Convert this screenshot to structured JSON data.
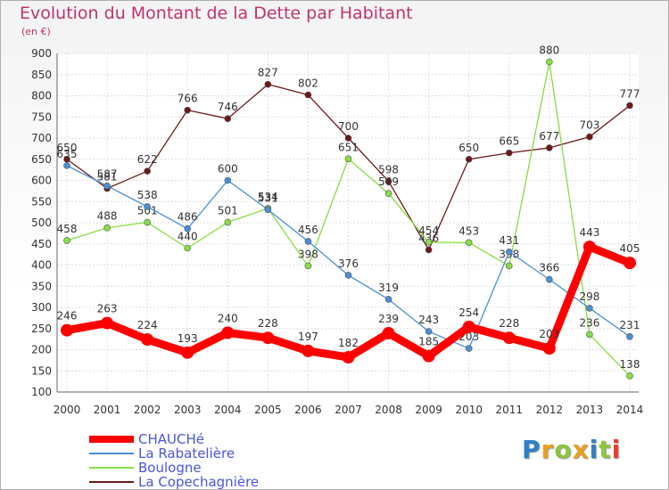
{
  "title": "Evolution du Montant de la Dette par Habitant",
  "subtitle": "(en €)",
  "brand": "Proxiti",
  "chart_data": {
    "type": "line",
    "title": "Evolution du Montant de la Dette par Habitant",
    "ylabel": "(en €)",
    "xlabel": "",
    "ylim": [
      100,
      900
    ],
    "yticks": [
      "100",
      "150",
      "200",
      "250",
      "300",
      "350",
      "400",
      "450",
      "500",
      "550",
      "600",
      "650",
      "700",
      "750",
      "800",
      "850",
      "900"
    ],
    "categories": [
      "2000",
      "2001",
      "2002",
      "2003",
      "2004",
      "2005",
      "2006",
      "2007",
      "2008",
      "2009",
      "2010",
      "2011",
      "2012",
      "2013",
      "2014"
    ],
    "grid": true,
    "legend_position": "bottom-left",
    "series": [
      {
        "name": "CHAUCHé",
        "color": "#ff0000",
        "values": [
          246,
          263,
          224,
          193,
          240,
          228,
          197,
          182,
          239,
          185,
          254,
          228,
          203,
          443,
          405
        ],
        "labels": [
          "246",
          "263",
          "224",
          "193",
          "240",
          "228",
          "197",
          "182",
          "239",
          "185",
          "254",
          "228",
          "203",
          "443",
          "405"
        ]
      },
      {
        "name": "La Rabatelière",
        "color": "#4a8fd4",
        "values": [
          635,
          587,
          538,
          486,
          600,
          531,
          456,
          376,
          319,
          243,
          203,
          431,
          366,
          298,
          231
        ],
        "labels": [
          "635",
          "587",
          "538",
          "486",
          "600",
          "531",
          "456",
          "376",
          "319",
          "243",
          "203",
          "431",
          "366",
          "298",
          "231"
        ]
      },
      {
        "name": "Boulogne",
        "color": "#88dd44",
        "values": [
          458,
          488,
          501,
          440,
          501,
          534,
          398,
          651,
          569,
          454,
          453,
          398,
          880,
          236,
          138
        ],
        "labels": [
          "458",
          "488",
          "501",
          "440",
          "501",
          "534",
          "398",
          "651",
          "569",
          "454",
          "453",
          "398",
          "880",
          "236",
          "138"
        ]
      },
      {
        "name": "La Copechagnière",
        "color": "#6b1a1a",
        "values": [
          650,
          581,
          622,
          766,
          746,
          827,
          802,
          700,
          598,
          436,
          650,
          665,
          677,
          703,
          777
        ],
        "labels": [
          "650",
          "581",
          "622",
          "766",
          "746",
          "827",
          "802",
          "700",
          "598",
          "436",
          "650",
          "665",
          "677",
          "703",
          "777"
        ]
      }
    ]
  }
}
